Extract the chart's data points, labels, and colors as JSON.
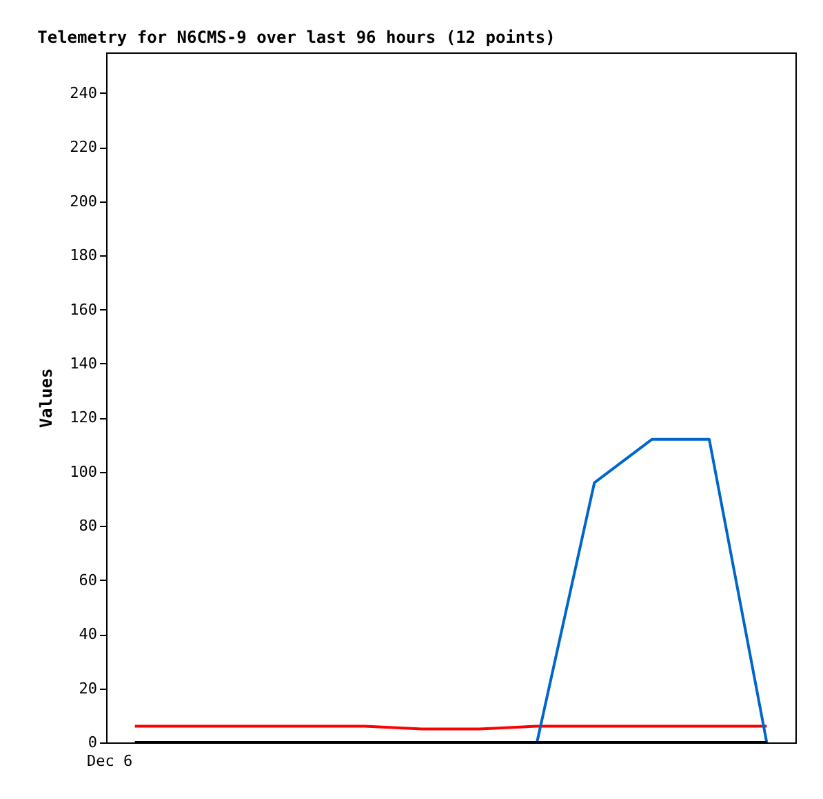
{
  "chart_data": {
    "type": "line",
    "title": "Telemetry for N6CMS-9 over last 96 hours (12 points)",
    "ylabel": "Values",
    "categories": [
      null,
      null,
      null,
      null,
      null,
      null,
      null,
      null,
      null,
      null,
      null,
      null
    ],
    "annotations": [
      "Dec 6"
    ],
    "ylim": [
      0,
      255
    ],
    "yticks": [
      0,
      20,
      40,
      60,
      80,
      100,
      120,
      140,
      160,
      180,
      200,
      220,
      240
    ],
    "grid": false,
    "marker": "none",
    "line_style": "solid",
    "series": [
      {
        "color": "#ff0000",
        "values": [
          6,
          6,
          6,
          6,
          6,
          5,
          5,
          6,
          6,
          6,
          6,
          6
        ]
      },
      {
        "color": "#0066cc",
        "values": [
          null,
          null,
          null,
          null,
          null,
          null,
          null,
          0,
          96,
          112,
          112,
          0
        ]
      },
      {
        "color": "#000000",
        "values": [
          0,
          0,
          0,
          0,
          0,
          0,
          0,
          0,
          0,
          0,
          0,
          0
        ]
      }
    ]
  }
}
